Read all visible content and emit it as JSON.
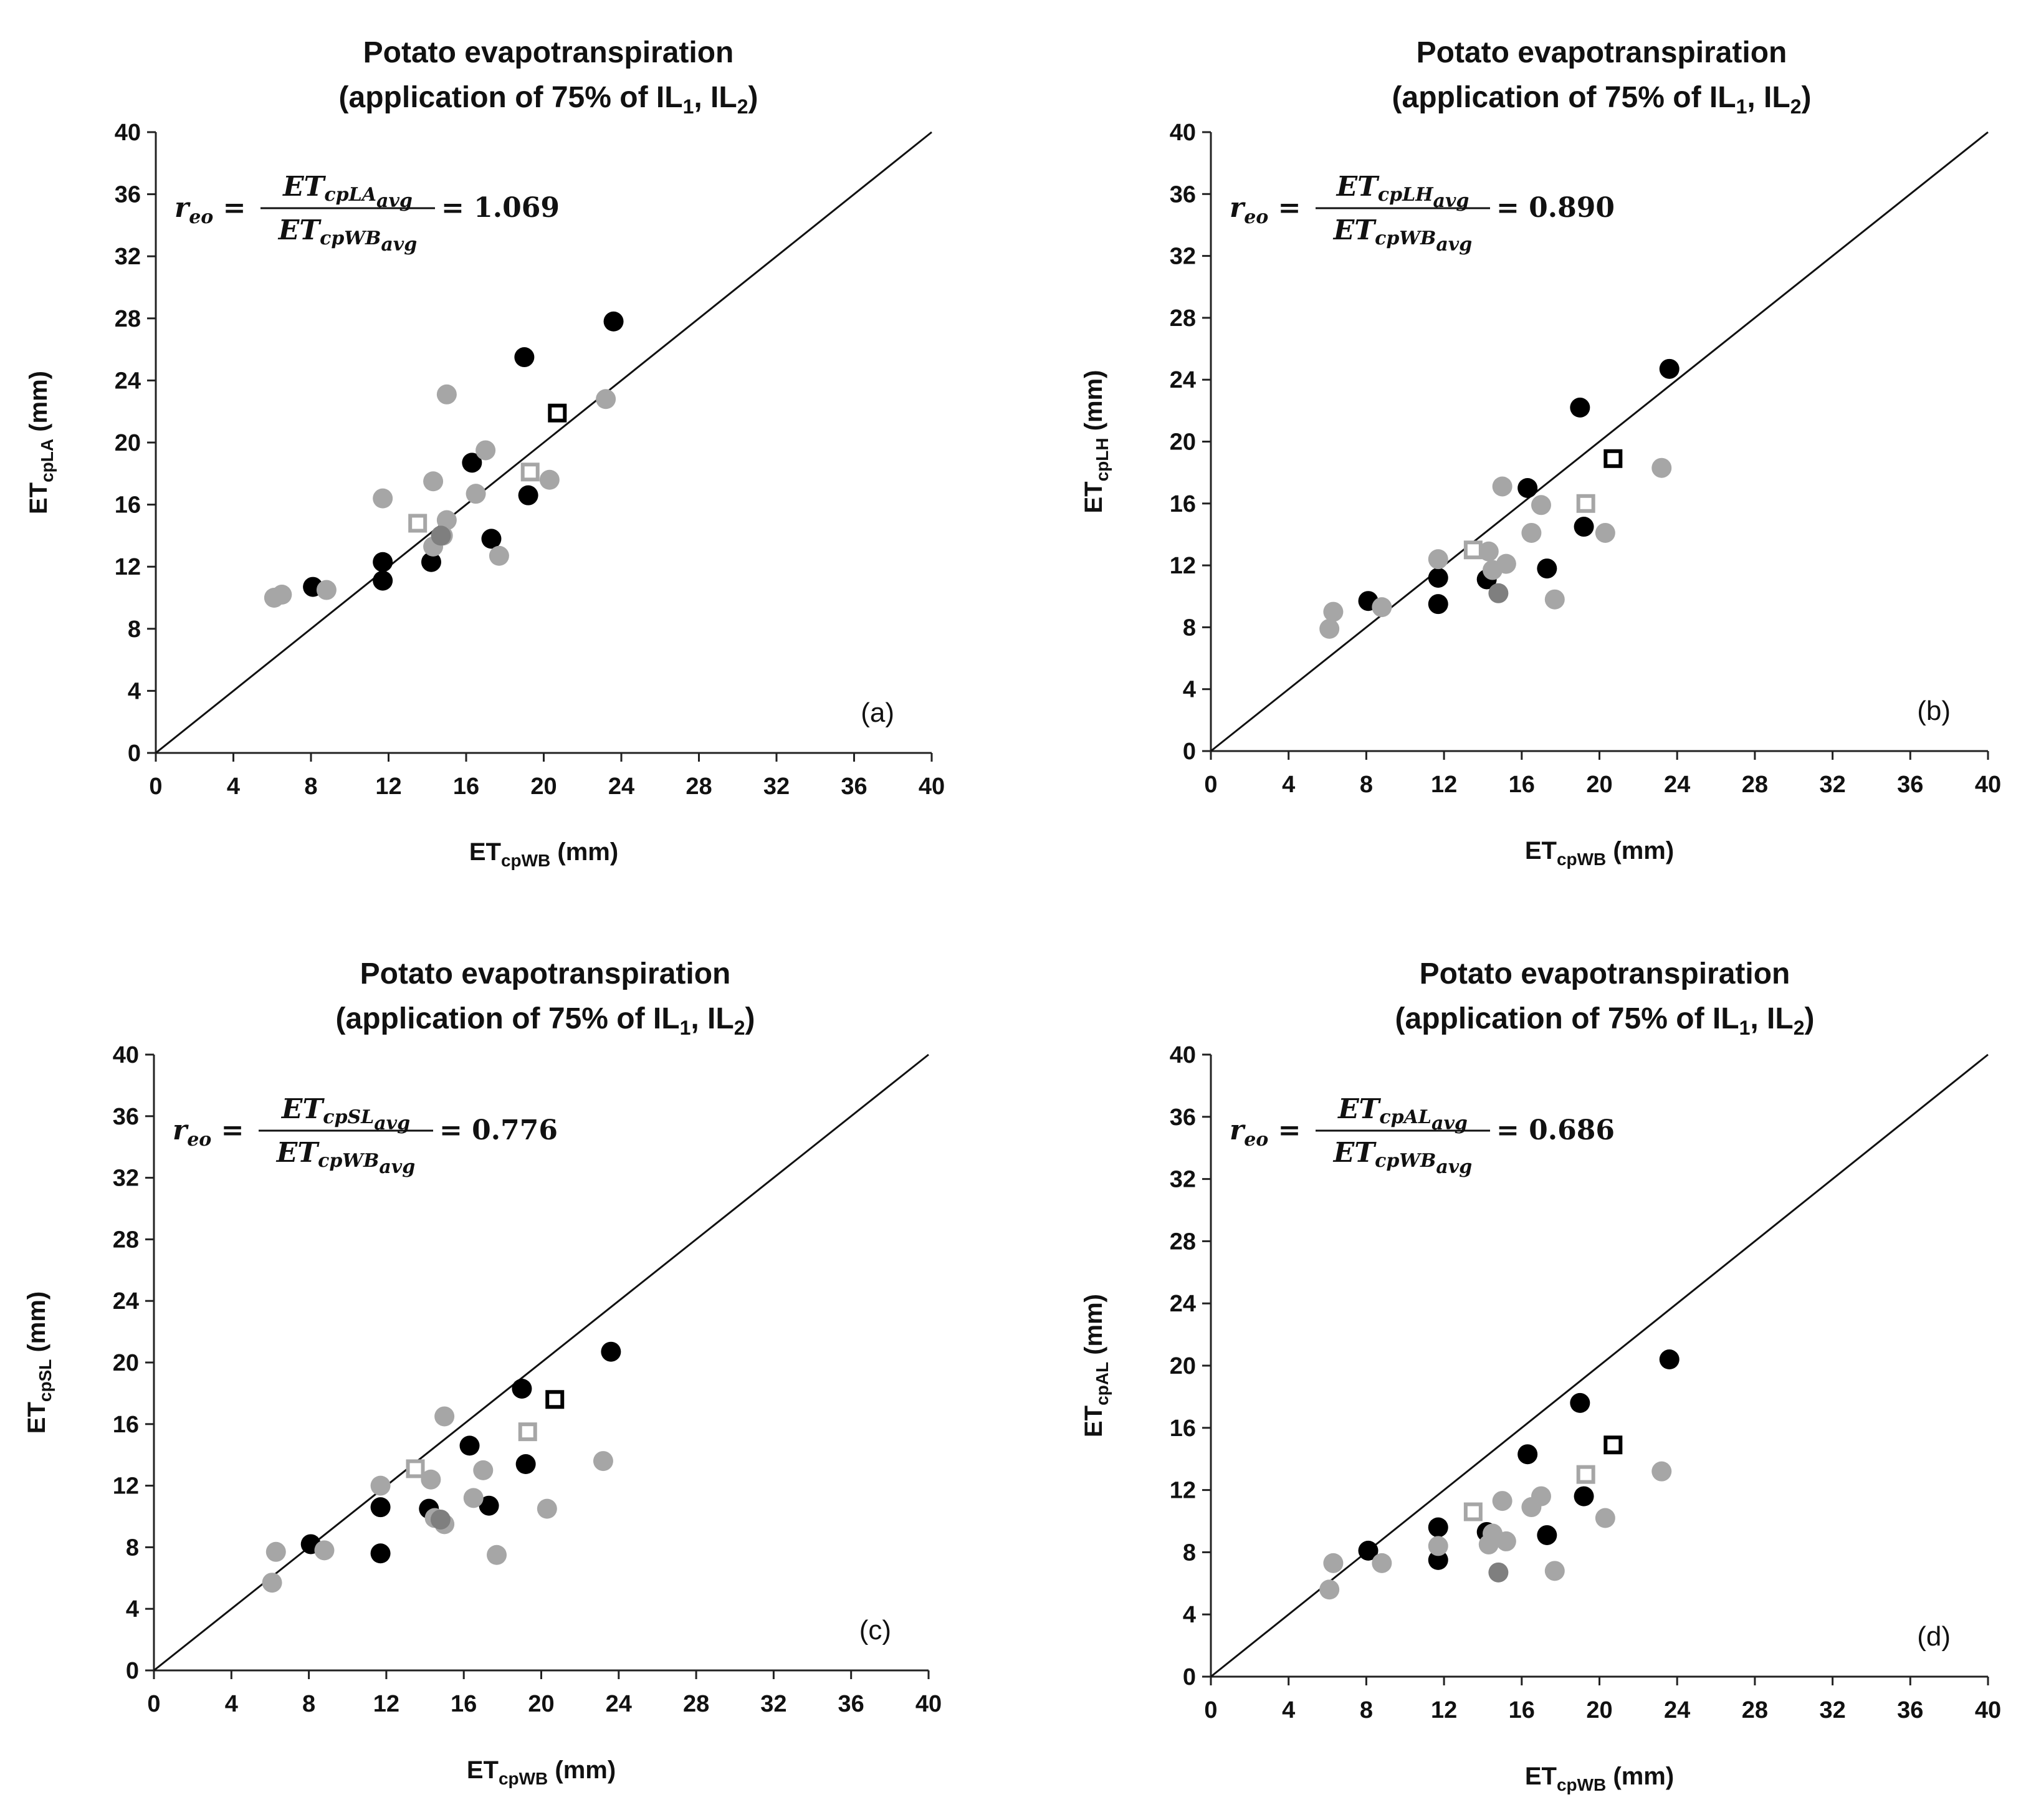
{
  "chart_data": [
    {
      "panel": "(a)",
      "type": "scatter",
      "title_line1": "Potato evapotranspiration",
      "title_line2_prefix": "(application of 75% of IL",
      "title_sub1": "1",
      "title_mid": ", IL",
      "title_sub2": "2",
      "title_suffix": ")",
      "xlabel_main": "ET",
      "xlabel_sub": "cpWB",
      "xlabel_unit": " (mm)",
      "ylabel_main": "ET",
      "ylabel_sub": "cpLA",
      "ylabel_unit": " (mm)",
      "xlim": [
        0,
        40
      ],
      "ylim": [
        0,
        40
      ],
      "xticks": [
        "0",
        "4",
        "8",
        "12",
        "16",
        "20",
        "24",
        "28",
        "32",
        "36",
        "40"
      ],
      "yticks": [
        "0",
        "4",
        "8",
        "12",
        "16",
        "20",
        "24",
        "28",
        "32",
        "36",
        "40"
      ],
      "equation": {
        "lhs": "r",
        "lhs_sub": "eo",
        "num": "ET",
        "num_sub": "cpLA",
        "num_subsub": "avg",
        "den": "ET",
        "den_sub": "cpWB",
        "den_subsub": "avg",
        "value": "= 1.069"
      },
      "series": [
        {
          "name": "black-dots",
          "color": "#000000",
          "marker": "circle",
          "points": [
            [
              8.1,
              10.7
            ],
            [
              11.7,
              12.3
            ],
            [
              11.7,
              11.1
            ],
            [
              14.2,
              12.3
            ],
            [
              16.3,
              18.7
            ],
            [
              17.3,
              13.8
            ],
            [
              19.0,
              25.5
            ],
            [
              19.2,
              16.6
            ],
            [
              23.6,
              27.8
            ]
          ]
        },
        {
          "name": "gray-dots",
          "color": "#a6a6a6",
          "marker": "circle",
          "points": [
            [
              6.1,
              10.0
            ],
            [
              6.5,
              10.2
            ],
            [
              8.8,
              10.5
            ],
            [
              11.7,
              16.4
            ],
            [
              14.3,
              17.5
            ],
            [
              14.3,
              13.3
            ],
            [
              14.8,
              14.0
            ],
            [
              15.0,
              15.0
            ],
            [
              15.0,
              23.1
            ],
            [
              16.5,
              16.7
            ],
            [
              17.0,
              19.5
            ],
            [
              17.7,
              12.7
            ],
            [
              20.3,
              17.6
            ],
            [
              23.2,
              22.8
            ]
          ]
        },
        {
          "name": "dark-gray-dot",
          "color": "#7f7f7f",
          "marker": "circle",
          "points": [
            [
              14.7,
              14.0
            ]
          ]
        },
        {
          "name": "black-square",
          "color": "#000000",
          "marker": "square-open",
          "points": [
            [
              20.7,
              21.9
            ]
          ]
        },
        {
          "name": "gray-square",
          "color": "#a6a6a6",
          "marker": "square-open",
          "points": [
            [
              13.5,
              14.8
            ],
            [
              19.3,
              18.1
            ]
          ]
        }
      ]
    },
    {
      "panel": "(b)",
      "type": "scatter",
      "title_line1": "Potato evapotranspiration",
      "title_line2_prefix": "(application of 75% of IL",
      "title_sub1": "1",
      "title_mid": ", IL",
      "title_sub2": "2",
      "title_suffix": ")",
      "xlabel_main": "ET",
      "xlabel_sub": "cpWB",
      "xlabel_unit": " (mm)",
      "ylabel_main": "ET",
      "ylabel_sub": "cpLH",
      "ylabel_unit": " (mm)",
      "xlim": [
        0,
        40
      ],
      "ylim": [
        0,
        40
      ],
      "xticks": [
        "0",
        "4",
        "8",
        "12",
        "16",
        "20",
        "24",
        "28",
        "32",
        "36",
        "40"
      ],
      "yticks": [
        "0",
        "4",
        "8",
        "12",
        "16",
        "20",
        "24",
        "28",
        "32",
        "36",
        "40"
      ],
      "equation": {
        "lhs": "r",
        "lhs_sub": "eo",
        "num": "ET",
        "num_sub": "cpLH",
        "num_subsub": "avg",
        "den": "ET",
        "den_sub": "cpWB",
        "den_subsub": "avg",
        "value": "= 0.890"
      },
      "series": [
        {
          "name": "black-dots",
          "color": "#000000",
          "marker": "circle",
          "points": [
            [
              8.1,
              9.7
            ],
            [
              11.7,
              11.2
            ],
            [
              11.7,
              9.5
            ],
            [
              14.2,
              11.1
            ],
            [
              16.3,
              17.0
            ],
            [
              17.3,
              11.8
            ],
            [
              19.0,
              22.2
            ],
            [
              19.2,
              14.5
            ],
            [
              23.6,
              24.7
            ]
          ]
        },
        {
          "name": "gray-dots",
          "color": "#a6a6a6",
          "marker": "circle",
          "points": [
            [
              6.1,
              7.9
            ],
            [
              6.3,
              9.0
            ],
            [
              8.8,
              9.3
            ],
            [
              11.7,
              12.4
            ],
            [
              14.3,
              12.9
            ],
            [
              14.5,
              11.7
            ],
            [
              15.0,
              17.1
            ],
            [
              15.2,
              12.1
            ],
            [
              16.5,
              14.1
            ],
            [
              17.0,
              15.9
            ],
            [
              17.7,
              9.8
            ],
            [
              20.3,
              14.1
            ],
            [
              23.2,
              18.3
            ]
          ]
        },
        {
          "name": "dark-gray-dot",
          "color": "#7f7f7f",
          "marker": "circle",
          "points": [
            [
              14.8,
              10.2
            ]
          ]
        },
        {
          "name": "black-square",
          "color": "#000000",
          "marker": "square-open",
          "points": [
            [
              20.7,
              18.9
            ]
          ]
        },
        {
          "name": "gray-square",
          "color": "#a6a6a6",
          "marker": "square-open",
          "points": [
            [
              13.5,
              13.0
            ],
            [
              19.3,
              16.0
            ]
          ]
        }
      ]
    },
    {
      "panel": "(c)",
      "type": "scatter",
      "title_line1": "Potato evapotranspiration",
      "title_line2_prefix": "(application of 75% of IL",
      "title_sub1": "1",
      "title_mid": ", IL",
      "title_sub2": "2",
      "title_suffix": ")",
      "xlabel_main": "ET",
      "xlabel_sub": "cpWB",
      "xlabel_unit": " (mm)",
      "ylabel_main": "ET",
      "ylabel_sub": "cpSL",
      "ylabel_unit": " (mm)",
      "xlim": [
        0,
        40
      ],
      "ylim": [
        0,
        40
      ],
      "xticks": [
        "0",
        "4",
        "8",
        "12",
        "16",
        "20",
        "24",
        "28",
        "32",
        "36",
        "40"
      ],
      "yticks": [
        "0",
        "4",
        "8",
        "12",
        "16",
        "20",
        "24",
        "28",
        "32",
        "36",
        "40"
      ],
      "equation": {
        "lhs": "r",
        "lhs_sub": "eo",
        "num": "ET",
        "num_sub": "cpSL",
        "num_subsub": "avg",
        "den": "ET",
        "den_sub": "cpWB",
        "den_subsub": "avg",
        "value": "= 0.776"
      },
      "series": [
        {
          "name": "black-dots",
          "color": "#000000",
          "marker": "circle",
          "points": [
            [
              8.1,
              8.2
            ],
            [
              11.7,
              10.6
            ],
            [
              11.7,
              7.6
            ],
            [
              14.2,
              10.5
            ],
            [
              16.3,
              14.6
            ],
            [
              17.3,
              10.7
            ],
            [
              19.0,
              18.3
            ],
            [
              19.2,
              13.4
            ],
            [
              23.6,
              20.7
            ]
          ]
        },
        {
          "name": "gray-dots",
          "color": "#a6a6a6",
          "marker": "circle",
          "points": [
            [
              6.1,
              5.7
            ],
            [
              6.3,
              7.7
            ],
            [
              8.8,
              7.8
            ],
            [
              11.7,
              12.0
            ],
            [
              14.3,
              12.4
            ],
            [
              14.5,
              9.9
            ],
            [
              15.0,
              9.5
            ],
            [
              15.0,
              16.5
            ],
            [
              16.5,
              11.2
            ],
            [
              17.0,
              13.0
            ],
            [
              17.7,
              7.5
            ],
            [
              20.3,
              10.5
            ],
            [
              23.2,
              13.6
            ]
          ]
        },
        {
          "name": "dark-gray-dot",
          "color": "#7f7f7f",
          "marker": "circle",
          "points": [
            [
              14.8,
              9.8
            ]
          ]
        },
        {
          "name": "black-square",
          "color": "#000000",
          "marker": "square-open",
          "points": [
            [
              20.7,
              17.6
            ]
          ]
        },
        {
          "name": "gray-square",
          "color": "#a6a6a6",
          "marker": "square-open",
          "points": [
            [
              13.5,
              13.1
            ],
            [
              19.3,
              15.5
            ]
          ]
        }
      ]
    },
    {
      "panel": "(d)",
      "type": "scatter",
      "title_line1": "Potato evapotranspiration",
      "title_line2_prefix": "(application of 75% of IL",
      "title_sub1": "1",
      "title_mid": ", IL",
      "title_sub2": "2",
      "title_suffix": ")",
      "xlabel_main": "ET",
      "xlabel_sub": "cpWB",
      "xlabel_unit": " (mm)",
      "ylabel_main": "ET",
      "ylabel_sub": "cpAL",
      "ylabel_unit": " (mm)",
      "xlim": [
        0,
        40
      ],
      "ylim": [
        0,
        40
      ],
      "xticks": [
        "0",
        "4",
        "8",
        "12",
        "16",
        "20",
        "24",
        "28",
        "32",
        "36",
        "40"
      ],
      "yticks": [
        "0",
        "4",
        "8",
        "12",
        "16",
        "20",
        "24",
        "28",
        "32",
        "36",
        "40"
      ],
      "equation": {
        "lhs": "r",
        "lhs_sub": "eo",
        "num": "ET",
        "num_sub": "cpAL",
        "num_subsub": "avg",
        "den": "ET",
        "den_sub": "cpWB",
        "den_subsub": "avg",
        "value": "= 0.686"
      },
      "series": [
        {
          "name": "black-dots",
          "color": "#000000",
          "marker": "circle",
          "points": [
            [
              8.1,
              8.1
            ],
            [
              11.7,
              9.6
            ],
            [
              11.7,
              7.5
            ],
            [
              14.2,
              9.3
            ],
            [
              16.3,
              14.3
            ],
            [
              17.3,
              9.1
            ],
            [
              19.0,
              17.6
            ],
            [
              19.2,
              11.6
            ],
            [
              23.6,
              20.4
            ]
          ]
        },
        {
          "name": "gray-dots",
          "color": "#a6a6a6",
          "marker": "circle",
          "points": [
            [
              6.1,
              5.6
            ],
            [
              6.3,
              7.3
            ],
            [
              8.8,
              7.3
            ],
            [
              11.7,
              8.4
            ],
            [
              14.3,
              8.5
            ],
            [
              14.5,
              9.2
            ],
            [
              15.0,
              11.3
            ],
            [
              15.2,
              8.7
            ],
            [
              16.5,
              10.9
            ],
            [
              17.0,
              11.6
            ],
            [
              17.7,
              6.8
            ],
            [
              20.3,
              10.2
            ],
            [
              23.2,
              13.2
            ]
          ]
        },
        {
          "name": "dark-gray-dot",
          "color": "#7f7f7f",
          "marker": "circle",
          "points": [
            [
              14.8,
              6.7
            ]
          ]
        },
        {
          "name": "black-square",
          "color": "#000000",
          "marker": "square-open",
          "points": [
            [
              20.7,
              14.9
            ]
          ]
        },
        {
          "name": "gray-square",
          "color": "#a6a6a6",
          "marker": "square-open",
          "points": [
            [
              13.5,
              10.6
            ],
            [
              19.3,
              13.0
            ]
          ]
        }
      ]
    }
  ]
}
